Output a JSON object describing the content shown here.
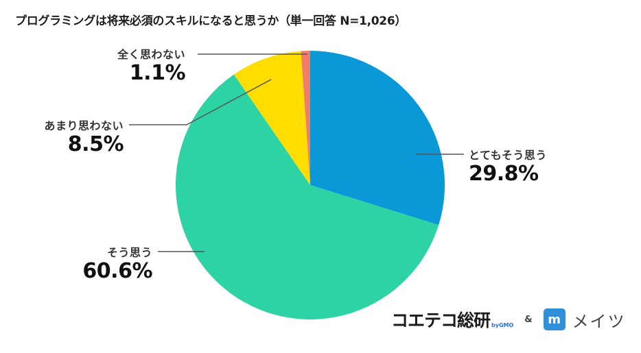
{
  "title": "プログラミングは将来必須のスキルになると思うか（単一回答 N=1,026）",
  "labels": {
    "totemo": {
      "name": "とてもそう思う",
      "pct": "29.8%"
    },
    "sou": {
      "name": "そう思う",
      "pct": "60.6%"
    },
    "amari": {
      "name": "あまり思わない",
      "pct": "8.5%"
    },
    "mattaku": {
      "name": "全く思わない",
      "pct": "1.1%"
    }
  },
  "footer": {
    "brand1": "コエテコ総研",
    "brand1_sub": "byGMO",
    "ampersand": "&",
    "brand2_icon": "m",
    "brand2": "メイツ"
  },
  "colors": {
    "totemo": "#0b98d6",
    "sou": "#2ed3a3",
    "amari": "#ffdd00",
    "mattaku": "#f47c6a",
    "leader": "#555555"
  },
  "chart_data": {
    "type": "pie",
    "title": "プログラミングは将来必須のスキルになると思うか（単一回答 N=1,026）",
    "n": 1026,
    "start_angle": "12 o'clock, clockwise",
    "categories": [
      "とてもそう思う",
      "そう思う",
      "あまり思わない",
      "全く思わない"
    ],
    "values": [
      29.8,
      60.6,
      8.5,
      1.1
    ],
    "colors": [
      "#0b98d6",
      "#2ed3a3",
      "#ffdd00",
      "#f47c6a"
    ],
    "legend": "none (direct labels with leader lines)"
  }
}
